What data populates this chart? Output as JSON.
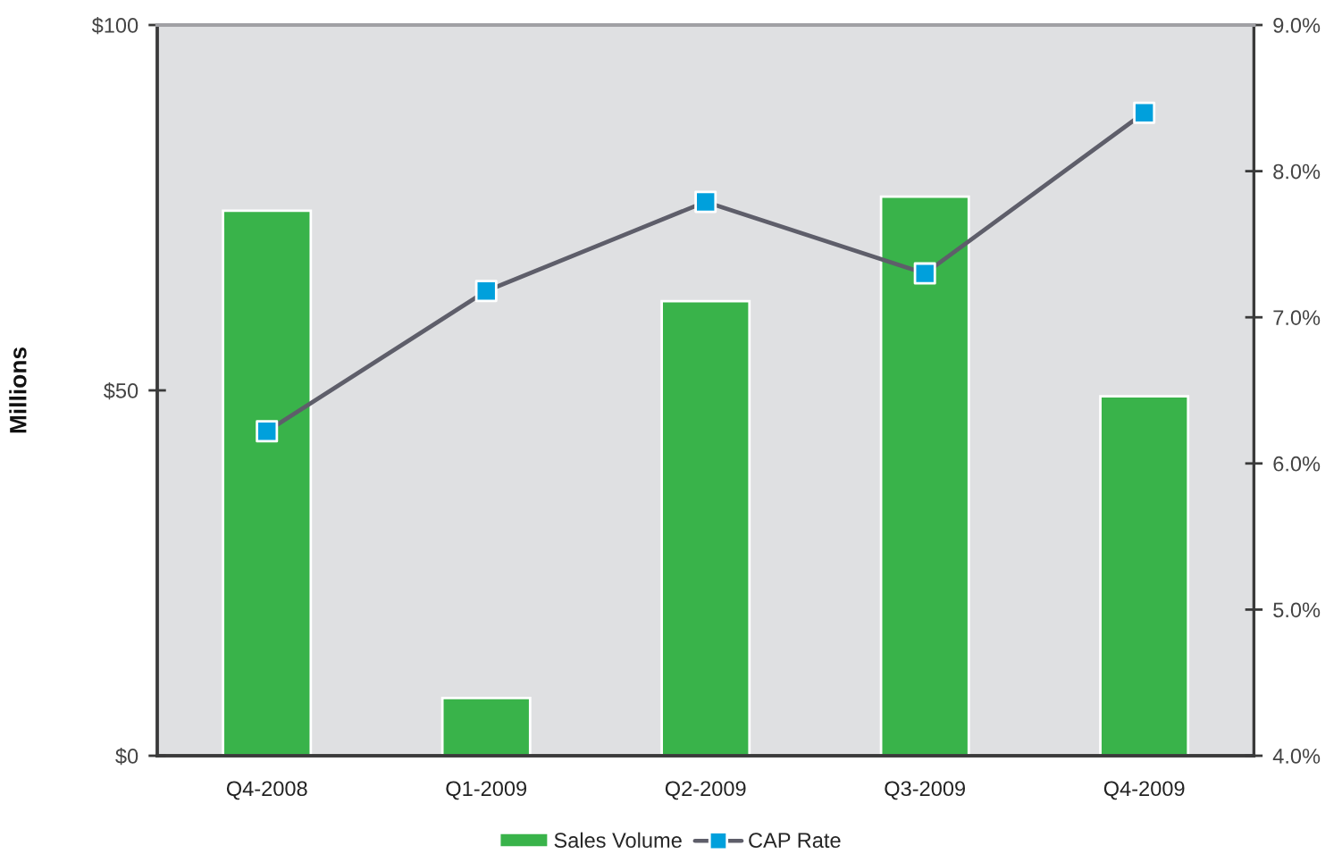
{
  "chart_data": {
    "type": "bar",
    "categories": [
      "Q4-2008",
      "Q1-2009",
      "Q2-2009",
      "Q3-2009",
      "Q4-2009"
    ],
    "ylabel": "Millions",
    "ylim": [
      0,
      100
    ],
    "yticks": [
      {
        "value": 0,
        "label": "$0"
      },
      {
        "value": 50,
        "label": "$50"
      },
      {
        "value": 100,
        "label": "$100"
      }
    ],
    "y2lim": [
      4,
      9
    ],
    "y2ticks": [
      {
        "value": 4,
        "label": "4.0%"
      },
      {
        "value": 5,
        "label": "5.0%"
      },
      {
        "value": 6,
        "label": "6.0%"
      },
      {
        "value": 7,
        "label": "7.0%"
      },
      {
        "value": 8,
        "label": "8.0%"
      },
      {
        "value": 9,
        "label": "9.0%"
      }
    ],
    "series": [
      {
        "name": "Sales Volume",
        "color": "#39b34a",
        "values": [
          74.6,
          7.9,
          62.2,
          76.5,
          49.2
        ]
      },
      {
        "name": "CAP Rate",
        "type": "line",
        "axis": "y2",
        "color": "#5e5e6a",
        "colors": [
          "#00a0dc",
          "#00a0dc",
          "#00a0dc",
          "#00a0dc",
          "#00a0dc"
        ],
        "values": [
          6.22,
          7.18,
          7.79,
          7.3,
          8.4
        ]
      }
    ],
    "marker": "square",
    "line_style": "solid",
    "legend": "bottom"
  }
}
